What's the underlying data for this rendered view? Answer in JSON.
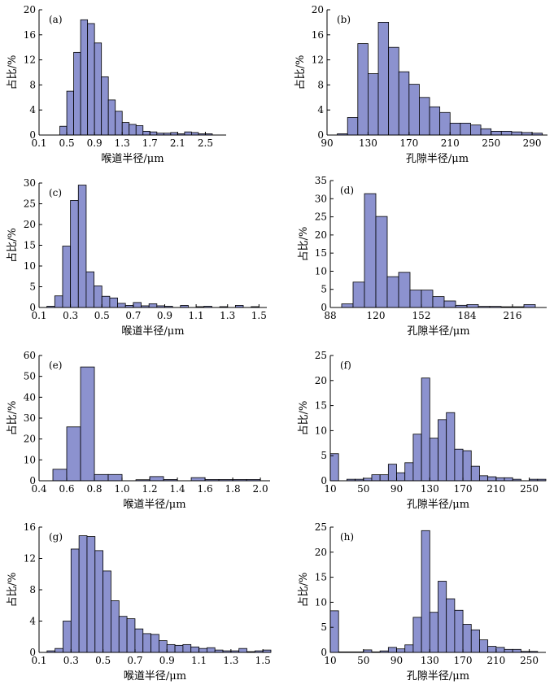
{
  "colors": {
    "bar_fill": "#8c92cf",
    "bar_stroke": "#000000"
  },
  "chart_data": [
    {
      "id": "a",
      "type": "bar",
      "panel_label": "(a)",
      "xlabel": "喉道半径/μm",
      "ylabel": "占比/%",
      "xlim": [
        0.1,
        2.8
      ],
      "ylim": [
        0,
        20
      ],
      "bin_width": 0.1,
      "xticks": [
        0.1,
        0.5,
        0.9,
        1.3,
        1.7,
        2.1,
        2.5
      ],
      "xtick_labels": [
        "0.1",
        "0.5",
        "0.9",
        "1.3",
        "1.7",
        "2.1",
        "2.5"
      ],
      "yticks": [
        0,
        4,
        8,
        12,
        16,
        20
      ],
      "ytick_labels": [
        "0",
        "4",
        "8",
        "12",
        "16",
        "20"
      ],
      "bins": [
        0.4,
        0.5,
        0.6,
        0.7,
        0.8,
        0.9,
        1.0,
        1.1,
        1.2,
        1.3,
        1.4,
        1.5,
        1.6,
        1.7,
        1.8,
        1.9,
        2.0,
        2.1,
        2.2,
        2.3,
        2.4,
        2.5
      ],
      "values": [
        1.4,
        7.0,
        13.2,
        18.4,
        17.8,
        14.7,
        9.3,
        5.6,
        3.8,
        2.0,
        1.7,
        1.5,
        0.6,
        0.5,
        0.3,
        0.3,
        0.4,
        0.2,
        0.5,
        0.4,
        0.2,
        0.2
      ]
    },
    {
      "id": "b",
      "type": "bar",
      "panel_label": "(b)",
      "xlabel": "孔隙半径/μm",
      "ylabel": "占比/%",
      "xlim": [
        90,
        305
      ],
      "ylim": [
        0,
        20
      ],
      "bin_width": 10,
      "xticks": [
        90,
        130,
        170,
        210,
        250,
        290
      ],
      "xtick_labels": [
        "90",
        "130",
        "170",
        "210",
        "250",
        "290"
      ],
      "yticks": [
        0,
        4,
        8,
        12,
        16,
        20
      ],
      "ytick_labels": [
        "0",
        "4",
        "8",
        "12",
        "16",
        "20"
      ],
      "bins": [
        100,
        110,
        120,
        130,
        140,
        150,
        160,
        170,
        180,
        190,
        200,
        210,
        220,
        230,
        240,
        250,
        260,
        270,
        280,
        290
      ],
      "values": [
        0.2,
        2.8,
        14.6,
        9.8,
        18.0,
        14.0,
        10.1,
        8.1,
        6.0,
        4.5,
        3.6,
        1.9,
        1.9,
        1.6,
        1.0,
        0.6,
        0.6,
        0.5,
        0.4,
        0.3
      ]
    },
    {
      "id": "c",
      "type": "bar",
      "panel_label": "(c)",
      "xlabel": "喉道半径/μm",
      "ylabel": "占比/%",
      "xlim": [
        0.1,
        1.55
      ],
      "ylim": [
        0,
        30
      ],
      "bin_width": 0.05,
      "xticks": [
        0.1,
        0.3,
        0.5,
        0.7,
        0.9,
        1.1,
        1.3,
        1.5
      ],
      "xtick_labels": [
        "0.1",
        "0.3",
        "0.5",
        "0.7",
        "0.9",
        "1.1",
        "1.3",
        "1.5"
      ],
      "yticks": [
        0,
        5,
        10,
        15,
        20,
        25,
        30
      ],
      "ytick_labels": [
        "0",
        "5",
        "10",
        "15",
        "20",
        "25",
        "30"
      ],
      "bins": [
        0.15,
        0.2,
        0.25,
        0.3,
        0.35,
        0.4,
        0.45,
        0.5,
        0.55,
        0.6,
        0.65,
        0.7,
        0.75,
        0.8,
        0.85,
        0.9,
        1.0,
        1.1,
        1.15,
        1.25,
        1.35,
        1.45
      ],
      "values": [
        0.3,
        2.8,
        14.8,
        25.8,
        29.5,
        8.6,
        5.2,
        2.7,
        2.3,
        1.0,
        0.5,
        1.2,
        0.4,
        0.9,
        0.4,
        0.3,
        0.5,
        0.2,
        0.3,
        0.2,
        0.5,
        0.2
      ]
    },
    {
      "id": "d",
      "type": "bar",
      "panel_label": "(d)",
      "xlabel": "孔隙半径/μm",
      "ylabel": "占比/%",
      "xlim": [
        88,
        240
      ],
      "ylim": [
        0,
        35
      ],
      "bin_width": 8,
      "xticks": [
        88,
        120,
        152,
        184,
        216
      ],
      "xtick_labels": [
        "88",
        "120",
        "152",
        "184",
        "216"
      ],
      "yticks": [
        0,
        5,
        10,
        15,
        20,
        25,
        30,
        35
      ],
      "ytick_labels": [
        "0",
        "5",
        "10",
        "15",
        "20",
        "25",
        "30",
        "35"
      ],
      "bins": [
        96,
        104,
        112,
        120,
        128,
        136,
        144,
        152,
        160,
        168,
        176,
        184,
        192,
        200,
        208,
        216,
        224
      ],
      "values": [
        1.0,
        7.0,
        31.4,
        25.1,
        8.5,
        9.7,
        4.8,
        4.8,
        3.0,
        1.8,
        0.6,
        0.8,
        0.3,
        0.3,
        0.2,
        0.2,
        0.8
      ]
    },
    {
      "id": "e",
      "type": "bar",
      "panel_label": "(e)",
      "xlabel": "喉道半径/μm",
      "ylabel": "占比/%",
      "xlim": [
        0.4,
        2.07
      ],
      "ylim": [
        0,
        60
      ],
      "bin_width": 0.1,
      "xticks": [
        0.4,
        0.6,
        0.8,
        1.0,
        1.2,
        1.4,
        1.6,
        1.8,
        2.0
      ],
      "xtick_labels": [
        "0.4",
        "0.6",
        "0.8",
        "1.0",
        "1.2",
        "1.4",
        "1.6",
        "1.8",
        "2.0"
      ],
      "yticks": [
        0,
        10,
        20,
        30,
        40,
        50,
        60
      ],
      "ytick_labels": [
        "0",
        "10",
        "20",
        "30",
        "40",
        "50",
        "60"
      ],
      "bins": [
        0.5,
        0.6,
        0.7,
        0.8,
        0.9,
        1.1,
        1.2,
        1.3,
        1.5,
        1.6,
        1.7,
        1.8,
        1.9
      ],
      "values": [
        5.5,
        25.8,
        54.5,
        3.0,
        3.0,
        0.5,
        2.0,
        0.6,
        1.5,
        0.6,
        0.6,
        0.6,
        0.6
      ]
    },
    {
      "id": "f",
      "type": "bar",
      "panel_label": "(f)",
      "xlabel": "孔隙半径/μm",
      "ylabel": "占比/%",
      "xlim": [
        10,
        270
      ],
      "ylim": [
        0,
        25
      ],
      "bin_width": 10,
      "xticks": [
        10,
        50,
        90,
        130,
        170,
        210,
        250
      ],
      "xtick_labels": [
        "10",
        "50",
        "90",
        "130",
        "170",
        "210",
        "250"
      ],
      "yticks": [
        0,
        5,
        10,
        15,
        20,
        25
      ],
      "ytick_labels": [
        "0",
        "5",
        "10",
        "15",
        "20",
        "25"
      ],
      "bins": [
        10,
        30,
        40,
        50,
        60,
        70,
        80,
        90,
        100,
        110,
        120,
        130,
        140,
        150,
        160,
        170,
        180,
        190,
        200,
        210,
        220,
        230,
        250,
        260
      ],
      "values": [
        5.4,
        0.3,
        0.3,
        0.5,
        1.2,
        1.2,
        3.3,
        1.6,
        3.6,
        9.3,
        20.5,
        8.5,
        12.2,
        13.6,
        6.3,
        6.0,
        2.9,
        1.0,
        0.8,
        0.6,
        0.6,
        0.3,
        0.3,
        0.3
      ]
    },
    {
      "id": "g",
      "type": "bar",
      "panel_label": "(g)",
      "xlabel": "喉道半径/μm",
      "ylabel": "占比/%",
      "xlim": [
        0.1,
        1.55
      ],
      "ylim": [
        0,
        16
      ],
      "bin_width": 0.05,
      "xticks": [
        0.1,
        0.3,
        0.5,
        0.7,
        0.9,
        1.1,
        1.3,
        1.5
      ],
      "xtick_labels": [
        "0.1",
        "0.3",
        "0.5",
        "0.7",
        "0.9",
        "1.1",
        "1.3",
        "1.5"
      ],
      "yticks": [
        0,
        4,
        8,
        12,
        16
      ],
      "ytick_labels": [
        "0",
        "4",
        "8",
        "12",
        "16"
      ],
      "bins": [
        0.15,
        0.2,
        0.25,
        0.3,
        0.35,
        0.4,
        0.45,
        0.5,
        0.55,
        0.6,
        0.65,
        0.7,
        0.75,
        0.8,
        0.85,
        0.9,
        0.95,
        1.0,
        1.05,
        1.1,
        1.15,
        1.2,
        1.25,
        1.3,
        1.35,
        1.4,
        1.45,
        1.5
      ],
      "values": [
        0.2,
        0.5,
        4.0,
        13.2,
        14.9,
        14.8,
        13.0,
        10.4,
        6.6,
        4.6,
        4.3,
        3.0,
        2.4,
        2.3,
        1.5,
        1.0,
        0.9,
        1.0,
        0.7,
        0.5,
        0.6,
        0.3,
        0.2,
        0.2,
        0.5,
        0.1,
        0.2,
        0.3
      ]
    },
    {
      "id": "h",
      "type": "bar",
      "panel_label": "(h)",
      "xlabel": "孔隙半径/μm",
      "ylabel": "占比/%",
      "xlim": [
        10,
        270
      ],
      "ylim": [
        0,
        25
      ],
      "bin_width": 10,
      "xticks": [
        10,
        50,
        90,
        130,
        170,
        210,
        250
      ],
      "xtick_labels": [
        "10",
        "50",
        "90",
        "130",
        "170",
        "210",
        "250"
      ],
      "yticks": [
        0,
        5,
        10,
        15,
        20,
        25
      ],
      "ytick_labels": [
        "0",
        "5",
        "10",
        "15",
        "20",
        "25"
      ],
      "bins": [
        10,
        20,
        30,
        40,
        50,
        60,
        70,
        80,
        90,
        100,
        110,
        120,
        130,
        140,
        150,
        160,
        170,
        180,
        190,
        200,
        210,
        220,
        230,
        240,
        250
      ],
      "values": [
        8.3,
        0.1,
        0.1,
        0.1,
        0.5,
        0.1,
        0.3,
        1.0,
        0.7,
        1.5,
        7.0,
        24.3,
        8.0,
        14.2,
        10.7,
        8.4,
        5.6,
        4.5,
        2.5,
        1.2,
        1.0,
        0.6,
        0.6,
        0.2,
        0.2
      ]
    }
  ]
}
